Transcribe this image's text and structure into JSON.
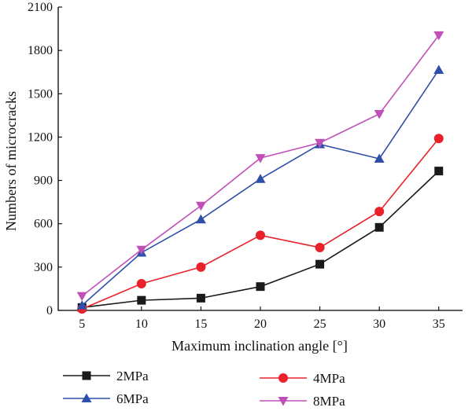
{
  "chart_data": {
    "type": "line",
    "xlabel": "Maximum inclination angle [°]",
    "ylabel": "Numbers of microcracks",
    "x": [
      5,
      10,
      15,
      20,
      25,
      30,
      35
    ],
    "xticks": [
      "5",
      "10",
      "15",
      "20",
      "25",
      "30",
      "35"
    ],
    "yticks": [
      "0",
      "300",
      "600",
      "900",
      "1200",
      "1500",
      "1800",
      "2100"
    ],
    "xlim": [
      3,
      37
    ],
    "ylim": [
      0,
      2100
    ],
    "grid": false,
    "legend_position": "bottom",
    "series": [
      {
        "name": "2MPa",
        "color": "#1a1a1a",
        "marker": "square",
        "values": [
          20,
          70,
          85,
          165,
          320,
          575,
          965
        ]
      },
      {
        "name": "4MPa",
        "color": "#e8212a",
        "marker": "circle",
        "values": [
          10,
          185,
          300,
          520,
          435,
          685,
          1190
        ]
      },
      {
        "name": "6MPa",
        "color": "#2f4fa8",
        "marker": "triangle-up",
        "values": [
          35,
          400,
          630,
          910,
          1150,
          1050,
          1665
        ]
      },
      {
        "name": "8MPa",
        "color": "#c050b8",
        "marker": "triangle-down",
        "values": [
          100,
          420,
          725,
          1055,
          1160,
          1360,
          1905
        ]
      }
    ]
  }
}
